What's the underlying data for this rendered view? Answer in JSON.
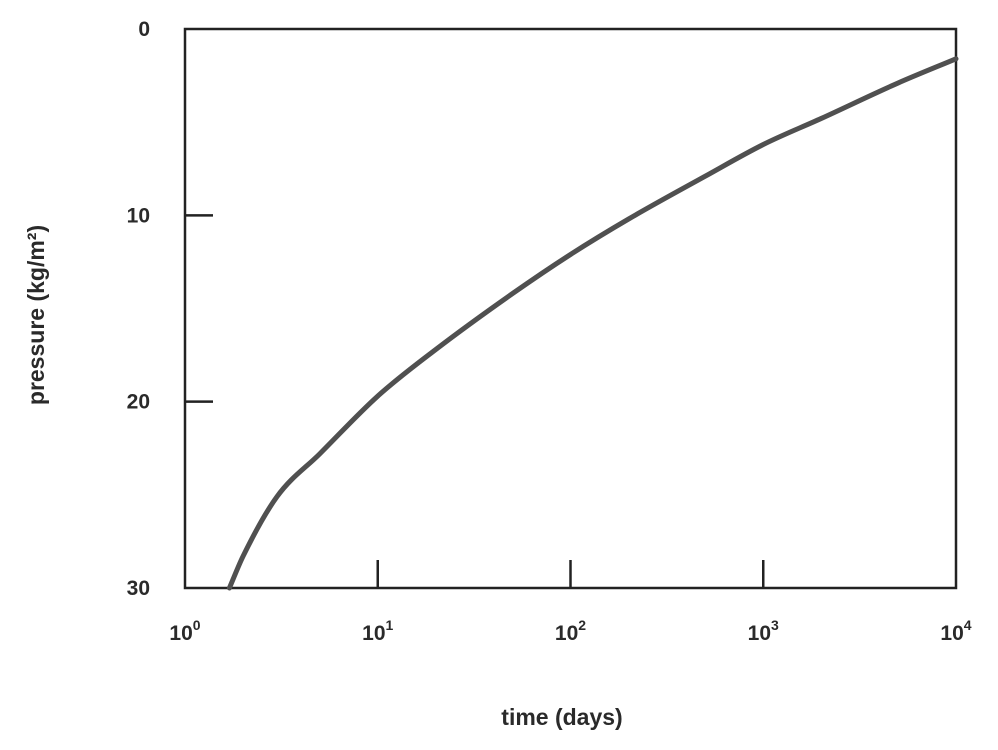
{
  "chart_data": {
    "type": "line",
    "title": "",
    "xlabel": "time (days)",
    "ylabel": "pressure (kg/m²)",
    "x_scale": "log",
    "xlim": [
      1,
      10000
    ],
    "ylim": [
      0,
      30
    ],
    "y_inverted": true,
    "grid": false,
    "legend": "none",
    "x_ticks": [
      {
        "value": 1,
        "base": "10",
        "exp": "0"
      },
      {
        "value": 10,
        "base": "10",
        "exp": "1"
      },
      {
        "value": 100,
        "base": "10",
        "exp": "2"
      },
      {
        "value": 1000,
        "base": "10",
        "exp": "3"
      },
      {
        "value": 10000,
        "base": "10",
        "exp": "4"
      }
    ],
    "y_ticks": [
      {
        "value": 0,
        "label": "0"
      },
      {
        "value": 10,
        "label": "10"
      },
      {
        "value": 20,
        "label": "20"
      },
      {
        "value": 30,
        "label": "30"
      }
    ],
    "series": [
      {
        "x": [
          1.7,
          2,
          3,
          5,
          10,
          20,
          50,
          100,
          200,
          500,
          1000,
          2000,
          5000,
          10000
        ],
        "y": [
          30,
          28.3,
          25.1,
          22.8,
          19.7,
          17.2,
          14.2,
          12.1,
          10.2,
          7.9,
          6.2,
          4.8,
          2.9,
          1.6
        ]
      }
    ],
    "colors": {
      "line": "#505050",
      "axis": "#222222",
      "text": "#2a2a2a"
    }
  }
}
